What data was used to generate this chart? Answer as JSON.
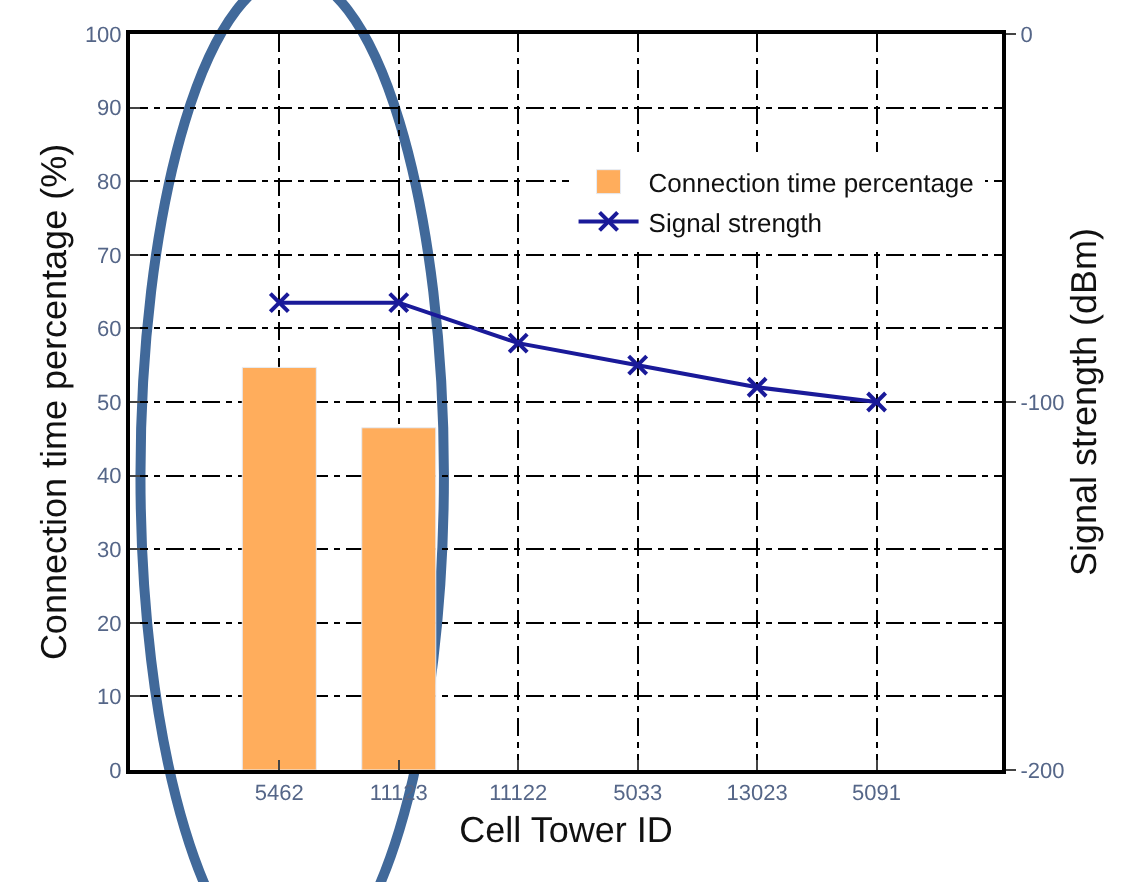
{
  "chart_data": {
    "type": "bar",
    "xlabel": "Cell Tower ID",
    "ylabel": "Connection time percentage (%)",
    "y2label": "Signal strength (dBm)",
    "categories": [
      "5462",
      "11123",
      "11122",
      "5033",
      "13023",
      "5091"
    ],
    "series": [
      {
        "name": "Connection time percentage",
        "color": "#ffad5c",
        "values": [
          54.7,
          46.5,
          null,
          null,
          null,
          null
        ]
      },
      {
        "name": "Signal strength",
        "type": "line",
        "axis": "y2",
        "color": "#1a1a99",
        "marker": "cross",
        "line_style": "solid",
        "values": [
          -73,
          -73,
          -84,
          -90,
          -96,
          -100
        ]
      }
    ],
    "ylim": [
      0,
      100
    ],
    "yticks": [
      0,
      10,
      20,
      30,
      40,
      50,
      60,
      70,
      80,
      90,
      100
    ],
    "y2lim": [
      -200,
      0
    ],
    "y2ticks": [
      -200,
      -100,
      0
    ],
    "grid": true,
    "legend": "top right"
  }
}
